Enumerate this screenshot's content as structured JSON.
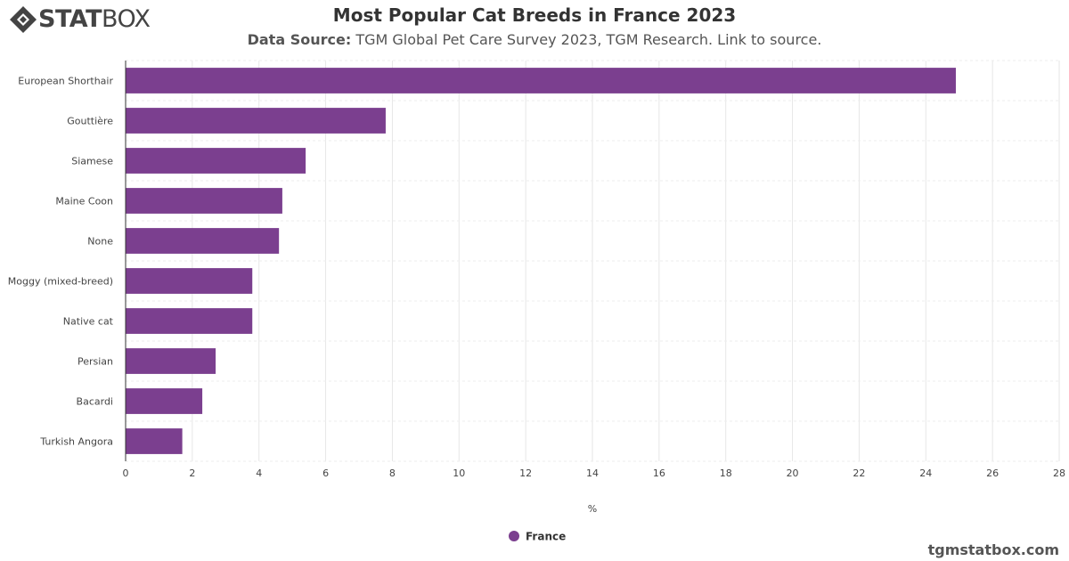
{
  "brand": {
    "logo_stat": "STAT",
    "logo_box": "BOX",
    "website": "tgmstatbox.com"
  },
  "header": {
    "title": "Most Popular Cat Breeds in France 2023",
    "source_label": "Data Source:",
    "source_text": "TGM Global Pet Care Survey 2023, TGM Research. Link to source."
  },
  "chart_data": {
    "type": "bar",
    "orientation": "horizontal",
    "categories": [
      "European Shorthair",
      "Gouttière",
      "Siamese",
      "Maine Coon",
      "None",
      "Moggy (mixed-breed)",
      "Native cat",
      "Persian",
      "Bacardi",
      "Turkish Angora"
    ],
    "series": [
      {
        "name": "France",
        "values": [
          24.9,
          7.8,
          5.4,
          4.7,
          4.6,
          3.8,
          3.8,
          2.7,
          2.3,
          1.7
        ],
        "color": "#7b3f8f"
      }
    ],
    "xlabel": "%",
    "xlim": [
      0,
      28
    ],
    "xticks": [
      0,
      2,
      4,
      6,
      8,
      10,
      12,
      14,
      16,
      18,
      20,
      22,
      24,
      26,
      28
    ],
    "grid": true,
    "legend_position": "bottom"
  }
}
